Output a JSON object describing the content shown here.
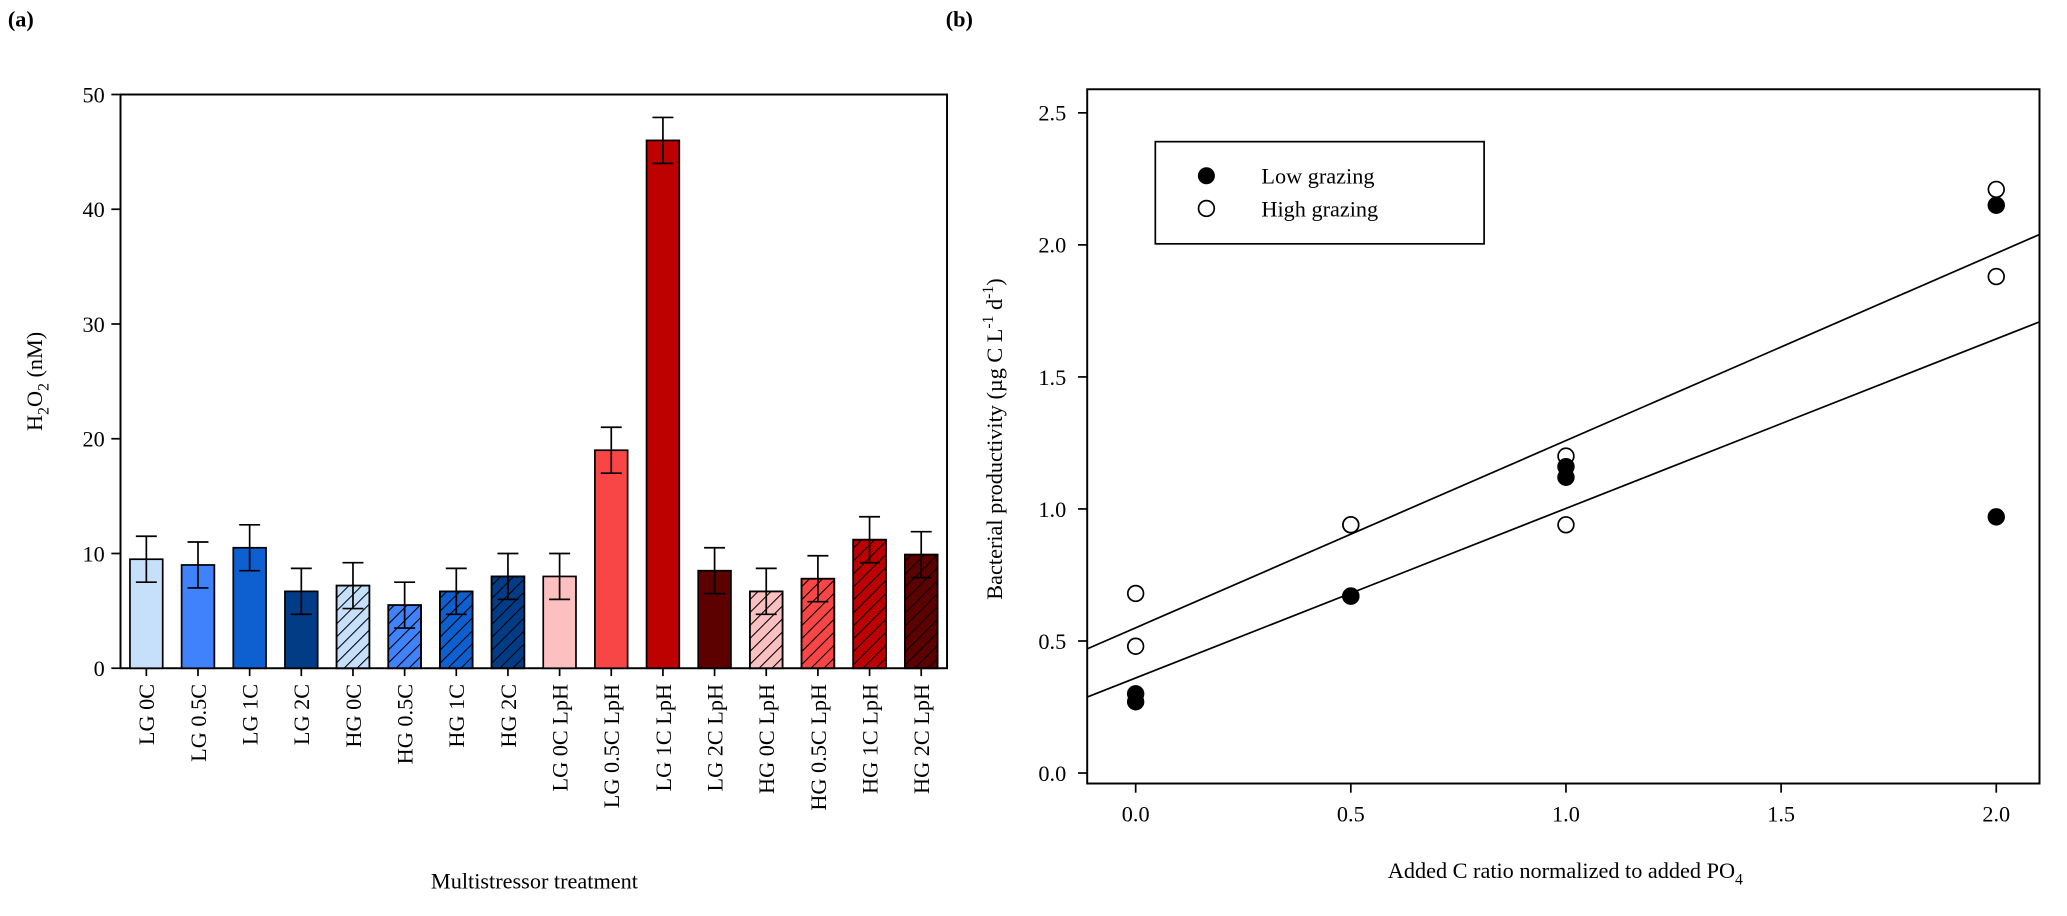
{
  "chart_data": [
    {
      "panel_label": "(a)",
      "type": "bar",
      "xlabel": "Multistressor treatment",
      "ylabel_main": "H",
      "ylabel_sub1": "2",
      "ylabel_mid": "O",
      "ylabel_sub2": "2",
      "ylabel_rest": " (nM)",
      "ylim": [
        0,
        50
      ],
      "yticks": [
        "0",
        "10",
        "20",
        "30",
        "40",
        "50"
      ],
      "categories": [
        "LG 0C",
        "LG 0.5C",
        "LG 1C",
        "LG 2C",
        "HG 0C",
        "HG 0.5C",
        "HG 1C",
        "HG 2C",
        "LG 0C LpH",
        "LG 0.5C LpH",
        "LG 1C LpH",
        "LG 2C LpH",
        "HG 0C LpH",
        "HG 0.5C LpH",
        "HG 1C LpH",
        "HG 2C LpH"
      ],
      "values": [
        9.5,
        9.0,
        10.5,
        6.7,
        7.2,
        5.5,
        6.7,
        8.0,
        8.0,
        19.0,
        46.0,
        8.5,
        6.7,
        7.8,
        11.2,
        9.9
      ],
      "errors": [
        2,
        2,
        2,
        2,
        2,
        2,
        2,
        2,
        2,
        2,
        2,
        2,
        2,
        2,
        2,
        2
      ],
      "colors": [
        "#c6e0fb",
        "#3f82fb",
        "#0e5fcf",
        "#023c86",
        "#c6e0fb",
        "#3f82fb",
        "#0e5fcf",
        "#023c86",
        "#fdc0c0",
        "#f84646",
        "#bd0000",
        "#5c0000",
        "#fdc0c0",
        "#f84646",
        "#bd0000",
        "#5c0000"
      ],
      "hatched": [
        false,
        false,
        false,
        false,
        true,
        true,
        true,
        true,
        false,
        false,
        false,
        false,
        true,
        true,
        true,
        true
      ]
    },
    {
      "panel_label": "(b)",
      "type": "scatter",
      "xlabel": "Added C ratio normalized to added PO",
      "xlabel_sub": "4",
      "ylabel": "Bacterial productivity (µg C L",
      "ylabel_sup1": "-1",
      "ylabel_mid": " d",
      "ylabel_sup2": "-1",
      "ylabel_end": ")",
      "xlim": [
        0,
        2.0
      ],
      "ylim": [
        0,
        2.5
      ],
      "xticks": [
        "0.0",
        "0.5",
        "1.0",
        "1.5",
        "2.0"
      ],
      "yticks": [
        "0.0",
        "0.5",
        "1.0",
        "1.5",
        "2.0",
        "2.5"
      ],
      "legend_position": "top-left",
      "series": [
        {
          "name": "Low grazing",
          "marker": "filled-circle",
          "x": [
            0,
            0,
            0.5,
            0.5,
            1,
            1,
            2,
            2
          ],
          "y": [
            0.27,
            0.3,
            0.67,
            0.67,
            1.12,
            1.16,
            2.15,
            0.97
          ],
          "fit": {
            "intercept": 0.36,
            "slope": 0.642
          }
        },
        {
          "name": "High grazing",
          "marker": "open-circle",
          "x": [
            0,
            0,
            0.5,
            0.5,
            1,
            1,
            2,
            2
          ],
          "y": [
            0.68,
            0.48,
            0.94,
            0.94,
            1.2,
            0.94,
            2.21,
            1.88
          ],
          "fit": {
            "intercept": 0.55,
            "slope": 0.709
          }
        }
      ]
    }
  ]
}
